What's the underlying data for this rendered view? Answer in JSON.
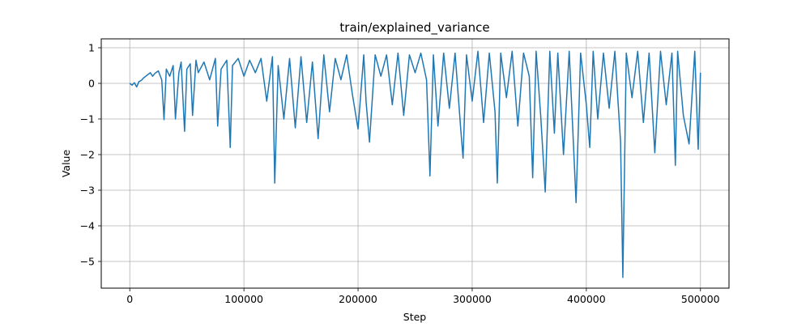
{
  "chart_data": {
    "type": "line",
    "title": "train/explained_variance",
    "xlabel": "Step",
    "ylabel": "Value",
    "xlim": [
      -25000,
      525000
    ],
    "ylim": [
      -5.75,
      1.25
    ],
    "xticks": [
      0,
      100000,
      200000,
      300000,
      400000,
      500000
    ],
    "xtick_labels": [
      "0",
      "100000",
      "200000",
      "300000",
      "400000",
      "500000"
    ],
    "yticks": [
      1,
      0,
      -1,
      -2,
      -3,
      -4,
      -5
    ],
    "ytick_labels": [
      "1",
      "0",
      "−1",
      "−2",
      "−3",
      "−4",
      "−5"
    ],
    "grid": true,
    "legend": "none",
    "series": [
      {
        "color": "#1f77b4",
        "x": [
          0,
          2000,
          4000,
          6000,
          8000,
          10000,
          12000,
          14000,
          16000,
          18000,
          20000,
          22000,
          25000,
          28000,
          30000,
          32000,
          35000,
          38000,
          40000,
          43000,
          45000,
          48000,
          50000,
          53000,
          55000,
          58000,
          60000,
          65000,
          70000,
          75000,
          77000,
          80000,
          85000,
          88000,
          90000,
          95000,
          100000,
          105000,
          110000,
          115000,
          120000,
          125000,
          127000,
          130000,
          135000,
          140000,
          145000,
          150000,
          155000,
          160000,
          165000,
          170000,
          175000,
          180000,
          185000,
          190000,
          195000,
          200000,
          205000,
          207000,
          210000,
          215000,
          220000,
          225000,
          230000,
          235000,
          240000,
          245000,
          250000,
          255000,
          260000,
          263000,
          266000,
          270000,
          275000,
          280000,
          285000,
          290000,
          292000,
          295000,
          300000,
          305000,
          310000,
          315000,
          320000,
          322000,
          325000,
          330000,
          335000,
          340000,
          345000,
          350000,
          353000,
          356000,
          360000,
          364000,
          368000,
          372000,
          375000,
          380000,
          385000,
          388000,
          391000,
          395000,
          400000,
          403000,
          406000,
          410000,
          415000,
          420000,
          425000,
          430000,
          432000,
          435000,
          440000,
          445000,
          450000,
          455000,
          460000,
          465000,
          470000,
          475000,
          478000,
          480000,
          485000,
          490000,
          495000,
          498000,
          500000
        ],
        "y": [
          0.0,
          -0.05,
          0.02,
          -0.1,
          0.05,
          0.08,
          0.15,
          0.2,
          0.25,
          0.3,
          0.2,
          0.28,
          0.35,
          0.1,
          -1.02,
          0.4,
          0.2,
          0.5,
          -1.0,
          0.3,
          0.6,
          -1.35,
          0.4,
          0.55,
          -0.9,
          0.65,
          0.3,
          0.6,
          0.1,
          0.7,
          -1.2,
          0.4,
          0.65,
          -1.8,
          0.5,
          0.7,
          0.2,
          0.65,
          0.3,
          0.7,
          -0.5,
          0.75,
          -2.8,
          0.5,
          -1.0,
          0.7,
          -1.25,
          0.75,
          -1.1,
          0.6,
          -1.55,
          0.8,
          -0.8,
          0.7,
          0.1,
          0.8,
          -0.3,
          -1.28,
          0.8,
          -0.5,
          -1.65,
          0.8,
          0.2,
          0.8,
          -0.6,
          0.85,
          -0.9,
          0.8,
          0.3,
          0.85,
          0.1,
          -2.6,
          0.8,
          -1.2,
          0.85,
          -0.7,
          0.85,
          -1.3,
          -2.1,
          0.8,
          -0.5,
          0.9,
          -1.1,
          0.85,
          -0.8,
          -2.8,
          0.85,
          -0.4,
          0.9,
          -1.2,
          0.85,
          0.2,
          -2.65,
          0.9,
          -0.9,
          -3.05,
          0.9,
          -1.4,
          0.85,
          -2.0,
          0.9,
          -1.2,
          -3.35,
          0.85,
          -0.6,
          -1.8,
          0.9,
          -1.0,
          0.85,
          -0.7,
          0.9,
          -1.65,
          -5.45,
          0.85,
          -0.4,
          0.9,
          -1.1,
          0.85,
          -1.95,
          0.9,
          -0.6,
          0.85,
          -2.3,
          0.9,
          -0.9,
          -1.7,
          0.9,
          -1.85,
          0.3
        ]
      }
    ]
  }
}
